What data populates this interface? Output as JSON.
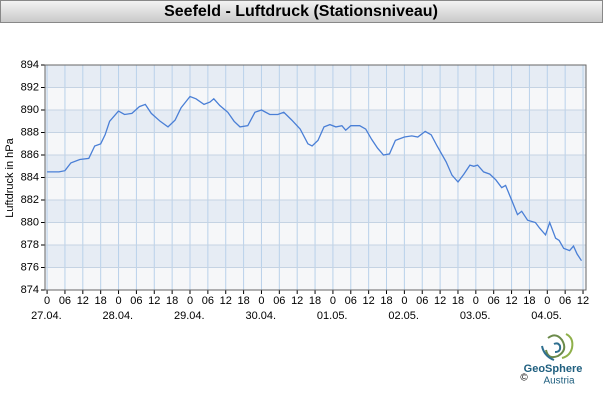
{
  "chart_data": {
    "type": "line",
    "title": "Seefeld - Luftdruck (Stationsniveau)",
    "y_label": "Luftdruck in hPa",
    "x": [
      0,
      4,
      6,
      8,
      11,
      14,
      16,
      18,
      19.5,
      21,
      24,
      26,
      28.5,
      31,
      33,
      35,
      38,
      40.6,
      43,
      45,
      48,
      50,
      52.7,
      54.7,
      56,
      58,
      60.7,
      62.8,
      64.8,
      67.4,
      69.8,
      72,
      74.8,
      77.5,
      79.5,
      82.2,
      85,
      87.6,
      89,
      91,
      93,
      95,
      97,
      99,
      100.3,
      102,
      105,
      107,
      109,
      111,
      113,
      115,
      117,
      120,
      122.5,
      124.5,
      127,
      129,
      131,
      134,
      136,
      138,
      140,
      142,
      143.3,
      144.6,
      146.6,
      148.7,
      150.7,
      152.7,
      154,
      156,
      158,
      159.4,
      161.4,
      164,
      165.4,
      167.4,
      168.8,
      170.8,
      172,
      173.5,
      175.5,
      176.8,
      178,
      179.5
    ],
    "series": [
      {
        "name": "Luftdruck",
        "color": "#4a7fd6",
        "values": [
          884.5,
          884.5,
          884.6,
          885.3,
          885.6,
          885.7,
          886.8,
          887.0,
          887.8,
          889.0,
          889.9,
          889.6,
          889.7,
          890.3,
          890.5,
          889.7,
          889.0,
          888.5,
          889.1,
          890.2,
          891.2,
          891.0,
          890.5,
          890.7,
          891.0,
          890.4,
          889.8,
          889.0,
          888.5,
          888.6,
          889.8,
          890.0,
          889.6,
          889.6,
          889.8,
          889.1,
          888.3,
          887.0,
          886.8,
          887.3,
          888.5,
          888.7,
          888.5,
          888.6,
          888.2,
          888.6,
          888.6,
          888.3,
          887.4,
          886.6,
          886.0,
          886.1,
          887.3,
          887.6,
          887.7,
          887.6,
          888.1,
          887.8,
          886.8,
          885.4,
          884.2,
          883.6,
          884.3,
          885.1,
          885.0,
          885.1,
          884.5,
          884.3,
          883.8,
          883.1,
          883.3,
          882.0,
          880.7,
          881.0,
          880.2,
          880.0,
          879.5,
          878.9,
          880.0,
          878.6,
          878.4,
          877.7,
          877.5,
          877.9,
          877.2,
          876.6
        ]
      }
    ],
    "xlim": [
      -0.7,
      181
    ],
    "ylim": [
      874,
      894
    ],
    "yticks": [
      874,
      876,
      878,
      880,
      882,
      884,
      886,
      888,
      890,
      892,
      894
    ],
    "xticks": [
      0,
      {
        "value": 6,
        "label": "06"
      },
      12,
      18,
      {
        "value": 24,
        "label": "0"
      },
      {
        "value": 30,
        "label": "06"
      },
      {
        "value": 36,
        "label": "12"
      },
      {
        "value": 42,
        "label": "18"
      },
      {
        "value": 48,
        "label": "0"
      },
      {
        "value": 54,
        "label": "06"
      },
      {
        "value": 60,
        "label": "12"
      },
      {
        "value": 66,
        "label": "18"
      },
      {
        "value": 72,
        "label": "0"
      },
      {
        "value": 78,
        "label": "06"
      },
      {
        "value": 84,
        "label": "12"
      },
      {
        "value": 90,
        "label": "18"
      },
      {
        "value": 96,
        "label": "0"
      },
      {
        "value": 102,
        "label": "06"
      },
      {
        "value": 108,
        "label": "12"
      },
      {
        "value": 114,
        "label": "18"
      },
      {
        "value": 120,
        "label": "0"
      },
      {
        "value": 126,
        "label": "06"
      },
      {
        "value": 132,
        "label": "12"
      },
      {
        "value": 138,
        "label": "18"
      },
      {
        "value": 144,
        "label": "0"
      },
      {
        "value": 150,
        "label": "06"
      },
      {
        "value": 156,
        "label": "12"
      },
      {
        "value": 162,
        "label": "18"
      },
      {
        "value": 168,
        "label": "0"
      },
      {
        "value": 174,
        "label": "06"
      },
      {
        "value": 180,
        "label": "12"
      }
    ],
    "day_labels": [
      {
        "value": 0,
        "label": "27.04."
      },
      {
        "value": 24,
        "label": "28.04."
      },
      {
        "value": 48,
        "label": "29.04."
      },
      {
        "value": 72,
        "label": "30.04."
      },
      {
        "value": 96,
        "label": "01.05."
      },
      {
        "value": 120,
        "label": "02.05."
      },
      {
        "value": 144,
        "label": "03.05."
      },
      {
        "value": 168,
        "label": "04.05."
      }
    ],
    "grid": true,
    "logo": {
      "name": "GeoSphere",
      "sub": "Austria",
      "copyright": "©"
    }
  }
}
